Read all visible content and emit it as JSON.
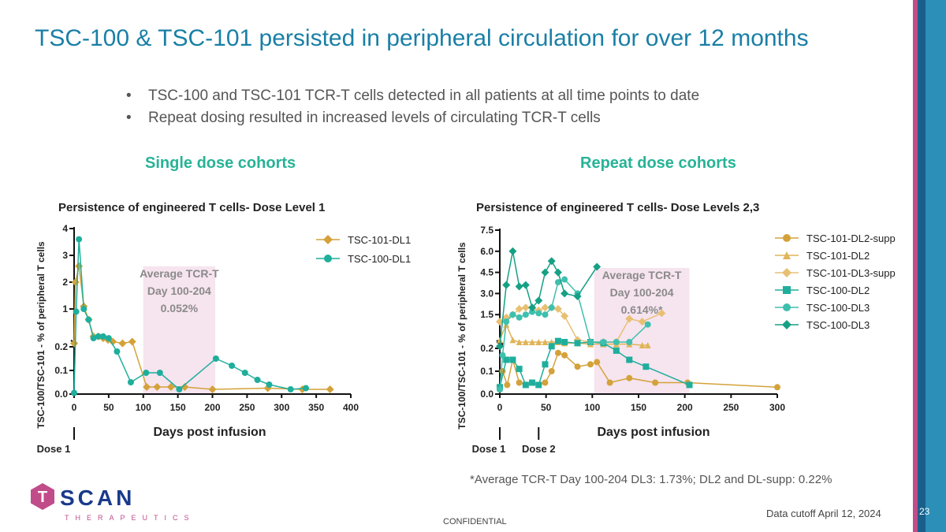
{
  "page": {
    "title": "TSC-100 & TSC-101 persisted in peripheral circulation for over 12 months",
    "bullets": [
      "TSC-100 and TSC-101 TCR-T cells detected in all patients at all time points to date",
      "Repeat dosing resulted in increased levels of circulating TCR-T cells"
    ],
    "left_heading": "Single dose cohorts",
    "right_heading": "Repeat dose cohorts",
    "footnote": "*Average TCR-T Day 100-204 DL3: 1.73%; DL2 and DL-supp: 0.22%",
    "cutoff": "Data cutoff April 12, 2024",
    "confidential": "CONFIDENTIAL",
    "page_number": "23",
    "logo_word": "SCAN",
    "logo_letter": "T",
    "logo_sub": "THERAPEUTICS",
    "colors": {
      "title": "#1a7fa6",
      "heading": "#27b396",
      "gold": "#d4a23a",
      "teal": "#1fae9c",
      "pink_band": "#f6e4ef"
    }
  },
  "chart_data": [
    {
      "type": "line",
      "title": "Persistence of engineered T cells- Dose Level 1",
      "xlabel": "Days post infusion",
      "ylabel": "TSC-100/TSC-101 - % of peripheral T cells",
      "xlim": [
        0,
        400
      ],
      "xticks": [
        "0",
        "50",
        "100",
        "150",
        "200",
        "250",
        "300",
        "350",
        "400"
      ],
      "upper_ylim": [
        0,
        4
      ],
      "upper_yticks": [
        "1",
        "2",
        "3",
        "4"
      ],
      "lower_ylim": [
        0,
        0.2
      ],
      "lower_yticks": [
        "0.0",
        "0.1",
        "0.2"
      ],
      "band": {
        "x": [
          100,
          204
        ],
        "label": [
          "Average TCR-T",
          "Day 100-204",
          "0.052%"
        ]
      },
      "dose_markers": [
        {
          "x": 0,
          "label": "Dose 1"
        }
      ],
      "legend": "top-right",
      "series": [
        {
          "name": "TSC-101-DL1",
          "color": "#d4a23a",
          "marker": "diamond",
          "x": [
            0,
            2,
            7,
            14,
            21,
            28,
            35,
            42,
            49,
            56,
            70,
            84,
            105,
            120,
            140,
            160,
            200,
            280,
            330,
            370
          ],
          "y": [
            0.3,
            2.0,
            2.6,
            1.1,
            0.6,
            0.5,
            0.5,
            0.45,
            0.4,
            0.35,
            0.3,
            0.35,
            0.03,
            0.03,
            0.03,
            0.03,
            0.02,
            0.025,
            0.02,
            0.02
          ]
        },
        {
          "name": "TSC-100-DL1",
          "color": "#1fae9c",
          "marker": "circle",
          "x": [
            0,
            3,
            7,
            14,
            21,
            28,
            35,
            42,
            50,
            62,
            82,
            104,
            124,
            152,
            205,
            228,
            247,
            265,
            282,
            313,
            335
          ],
          "y": [
            0.005,
            0.9,
            3.6,
            1.0,
            0.6,
            0.45,
            0.5,
            0.5,
            0.45,
            0.18,
            0.05,
            0.09,
            0.09,
            0.02,
            0.15,
            0.12,
            0.09,
            0.06,
            0.04,
            0.02,
            0.025
          ]
        }
      ]
    },
    {
      "type": "line",
      "title": "Persistence of engineered T cells- Dose Levels 2,3",
      "xlabel": "Days post infusion",
      "ylabel": "TSC-100/TSC-101 - % of peripheral T cells",
      "xlim": [
        0,
        300
      ],
      "xticks": [
        "0",
        "50",
        "100",
        "150",
        "200",
        "250",
        "300"
      ],
      "upper_ylim": [
        0,
        7.5
      ],
      "upper_yticks": [
        "1.5",
        "3.0",
        "4.5",
        "6.0",
        "7.5"
      ],
      "lower_ylim": [
        0,
        0.2
      ],
      "lower_yticks": [
        "0.0",
        "0.1",
        "0.2"
      ],
      "band": {
        "x": [
          102,
          205
        ],
        "label": [
          "Average TCR-T",
          "Day 100-204",
          "0.614%*"
        ]
      },
      "dose_markers": [
        {
          "x": 0,
          "label": "Dose 1"
        },
        {
          "x": 42,
          "label": "Dose 2"
        }
      ],
      "legend": "top-right",
      "series": [
        {
          "name": "TSC-101-DL2-supp",
          "color": "#d4a23a",
          "marker": "circle",
          "x": [
            0,
            3,
            8,
            14,
            21,
            28,
            35,
            42,
            49,
            56,
            63,
            70,
            84,
            98,
            105,
            119,
            140,
            168,
            203,
            300
          ],
          "y": [
            0.02,
            0.1,
            0.04,
            0.15,
            0.05,
            0.04,
            0.05,
            0.04,
            0.05,
            0.1,
            0.18,
            0.17,
            0.12,
            0.13,
            0.14,
            0.05,
            0.07,
            0.05,
            0.05,
            0.03
          ]
        },
        {
          "name": "TSC-101-DL2",
          "color": "#e0b458",
          "marker": "triangle",
          "x": [
            0,
            7,
            14,
            21,
            28,
            35,
            42,
            49,
            56,
            63,
            70,
            84,
            98,
            112,
            126,
            140,
            154,
            160
          ],
          "y": [
            0.6,
            0.8,
            0.6,
            0.5,
            0.5,
            0.5,
            0.5,
            0.5,
            0.5,
            0.5,
            0.45,
            0.45,
            0.4,
            0.4,
            0.4,
            0.4,
            0.35,
            0.35
          ]
        },
        {
          "name": "TSC-101-DL3-supp",
          "color": "#e8c074",
          "marker": "diamond",
          "x": [
            0,
            7,
            14,
            21,
            28,
            35,
            42,
            49,
            56,
            63,
            70,
            84,
            98,
            112,
            126,
            140,
            154,
            175
          ],
          "y": [
            1.0,
            1.3,
            1.5,
            1.9,
            2.0,
            2.0,
            1.8,
            2.0,
            2.0,
            1.9,
            1.4,
            0.6,
            0.5,
            0.5,
            0.5,
            1.2,
            1.0,
            1.6
          ]
        },
        {
          "name": "TSC-100-DL2",
          "color": "#1fae9c",
          "marker": "square",
          "x": [
            0,
            7,
            14,
            21,
            28,
            35,
            42,
            49,
            56,
            63,
            70,
            84,
            98,
            112,
            126,
            140,
            158,
            205
          ],
          "y": [
            0.03,
            0.15,
            0.15,
            0.11,
            0.04,
            0.05,
            0.04,
            0.13,
            0.3,
            0.55,
            0.5,
            0.45,
            0.5,
            0.45,
            0.19,
            0.15,
            0.12,
            0.04
          ]
        },
        {
          "name": "TSC-100-DL3",
          "color": "#3fbfae",
          "marker": "circle",
          "x": [
            0,
            3,
            7,
            14,
            21,
            28,
            35,
            42,
            49,
            56,
            63,
            70,
            84,
            98,
            112,
            126,
            140,
            160
          ],
          "y": [
            0.02,
            0.17,
            1.0,
            1.5,
            1.3,
            1.5,
            1.7,
            1.6,
            1.5,
            2.0,
            3.8,
            4.0,
            3.0,
            0.5,
            0.5,
            0.5,
            0.5,
            0.8
          ]
        },
        {
          "name": "TSC-100-DL3",
          "color": "#16a085",
          "marker": "diamond",
          "x": [
            0,
            7,
            14,
            21,
            28,
            35,
            42,
            49,
            56,
            63,
            70,
            84,
            105
          ],
          "y": [
            0.3,
            3.6,
            6.0,
            3.5,
            3.6,
            2.0,
            2.5,
            4.5,
            5.3,
            4.5,
            3.0,
            2.8,
            4.9
          ]
        }
      ]
    }
  ]
}
